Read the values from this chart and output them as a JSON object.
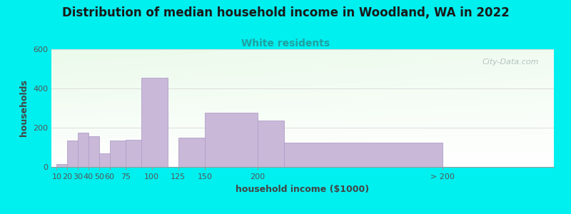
{
  "title": "Distribution of median household income in Woodland, WA in 2022",
  "subtitle": "White residents",
  "xlabel": "household income ($1000)",
  "ylabel": "households",
  "background_outer": "#00EFEF",
  "bar_color": "#c9b8d8",
  "bar_edge_color": "#b0a0c8",
  "bar_lefts": [
    10,
    20,
    30,
    40,
    50,
    60,
    75,
    90,
    125,
    150,
    200,
    225
  ],
  "bar_widths": [
    10,
    10,
    10,
    10,
    10,
    15,
    15,
    25,
    25,
    50,
    25,
    150
  ],
  "bar_heights": [
    15,
    135,
    175,
    155,
    70,
    135,
    140,
    455,
    148,
    275,
    235,
    125
  ],
  "x_tick_positions": [
    10,
    20,
    30,
    40,
    50,
    60,
    75,
    100,
    125,
    150,
    200,
    375
  ],
  "x_tick_labels": [
    "10",
    "20",
    "30",
    "40",
    "50",
    "60",
    "75",
    "100",
    "125",
    "150",
    "200",
    "> 200"
  ],
  "ylim": [
    0,
    600
  ],
  "yticks": [
    0,
    200,
    400,
    600
  ],
  "title_fontsize": 12,
  "subtitle_fontsize": 10,
  "subtitle_color": "#20a0a0",
  "axis_label_fontsize": 9,
  "tick_fontsize": 8,
  "watermark_text": "City-Data.com",
  "watermark_color": "#aabcbc",
  "xlim_left": 5,
  "xlim_right": 480
}
